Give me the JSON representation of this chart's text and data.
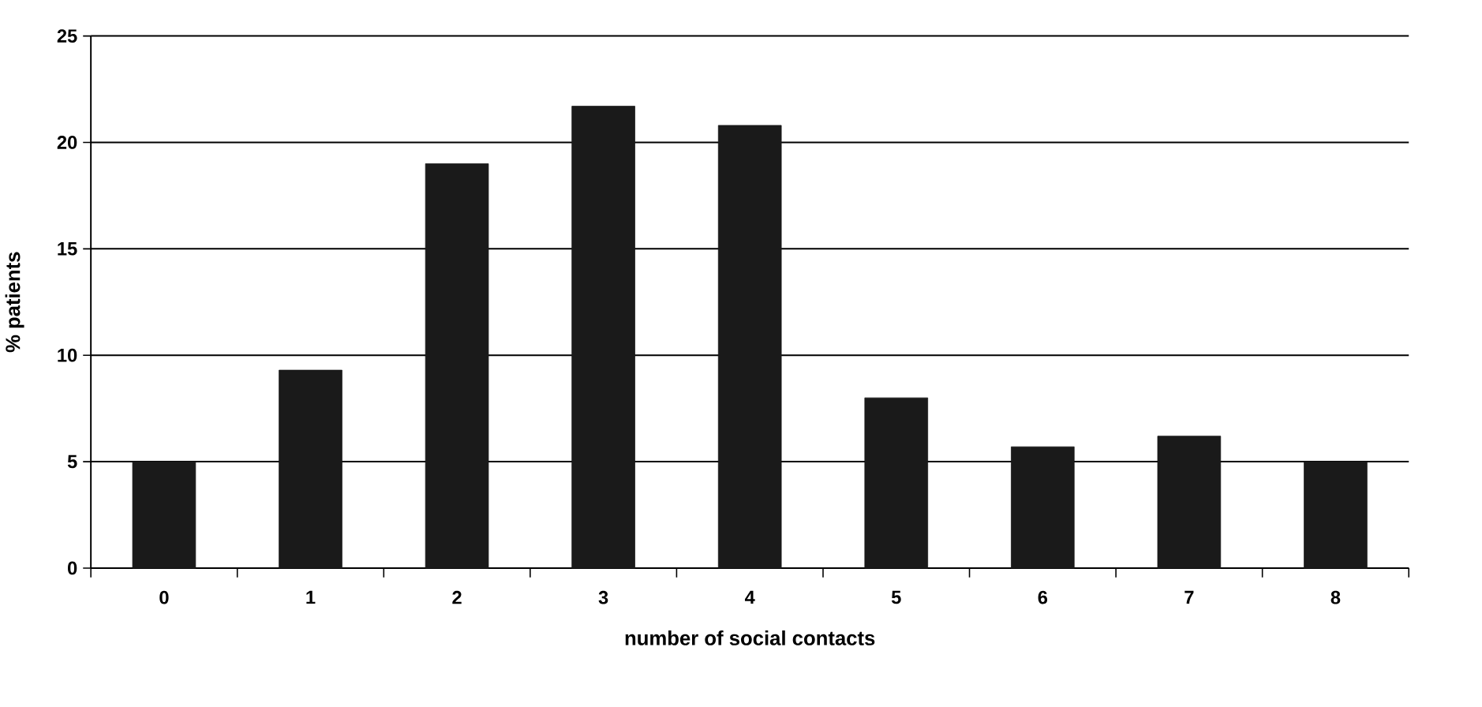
{
  "chart_data": {
    "type": "bar",
    "xlabel": "number of social contacts",
    "ylabel": "% patients",
    "categories": [
      "0",
      "1",
      "2",
      "3",
      "4",
      "5",
      "6",
      "7",
      "8"
    ],
    "values": [
      5.0,
      9.3,
      19.0,
      21.7,
      20.8,
      8.0,
      5.7,
      6.2,
      5.0
    ],
    "color": "#1a1a1a",
    "ylim": [
      0,
      25
    ],
    "yticks": [
      0,
      5,
      10,
      15,
      20,
      25
    ],
    "grid": "y"
  }
}
